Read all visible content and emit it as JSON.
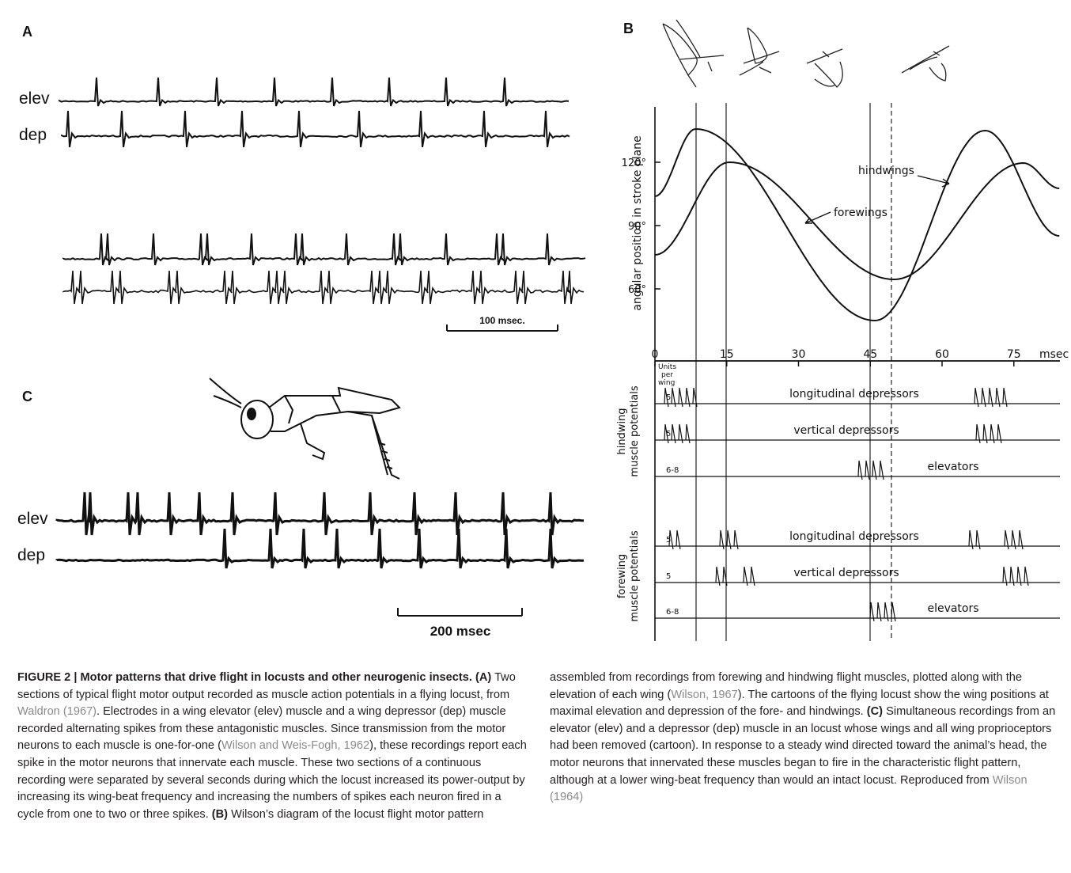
{
  "panel_a": {
    "label": "A",
    "elev": "elev",
    "dep": "dep",
    "scale_bar": "100 msec."
  },
  "panel_b": {
    "label": "B",
    "y_axis_title": "angular position in stroke plane",
    "y_ticks": [
      "60°",
      "90°",
      "120°"
    ],
    "x_ticks": [
      "0",
      "15",
      "30",
      "45",
      "60",
      "75"
    ],
    "x_unit": "msec",
    "curve_labels": [
      "hindwings",
      "forewings"
    ],
    "units_per_wing": [
      "Units",
      "per",
      "wing"
    ],
    "hindwing": {
      "title": [
        "hindwing",
        "muscle potentials"
      ],
      "rows": [
        {
          "units": "5",
          "label": "longitudinal depressors"
        },
        {
          "units": "5",
          "label": "vertical depressors"
        },
        {
          "units": "6-8",
          "label": "elevators"
        }
      ]
    },
    "forewing": {
      "title": [
        "forewing",
        "muscle potentials"
      ],
      "rows": [
        {
          "units": "5",
          "label": "longitudinal depressors"
        },
        {
          "units": "5",
          "label": "vertical depressors"
        },
        {
          "units": "6-8",
          "label": "elevators"
        }
      ]
    }
  },
  "panel_c": {
    "label": "C",
    "elev": "elev",
    "dep": "dep",
    "scale_bar": "200 msec"
  },
  "caption": {
    "segments": [
      "FIGURE 2 | Motor patterns that drive flight in locusts and other neurogenic insects.",
      "(A)",
      "Two sections of typical flight motor output recorded as muscle action potentials in a flying locust, from",
      "Waldron (1967)",
      ". Electrodes in a wing elevator (elev) muscle and a wing depressor (dep) muscle recorded alternating spikes from these antagonistic muscles. Since transmission from the motor neurons to each muscle is one-for-one (",
      "Wilson and Weis-Fogh, 1962",
      "), these recordings report each spike in the motor neurons that innervate each muscle. These two sections of a continuous recording were separated by several seconds during which the locust increased its power-output by increasing its wing-beat frequency and increasing the numbers of spikes each neuron fired in a cycle from one to two or three spikes.",
      "(B)",
      "Wilson’s diagram of the locust flight motor pattern assembled from recordings from forewing and hindwing flight muscles, plotted along with the elevation of each wing (",
      "Wilson, 1967",
      "). The cartoons of the flying locust show the wing positions at maximal elevation and depression of the fore- and hindwings.",
      "(C)",
      "Simultaneous recordings from an elevator (elev) and a depressor (dep) muscle in an locust whose wings and all wing proprioceptors had been removed (cartoon). In response to a steady wind directed toward the animal’s head, the motor neurons that innervated these muscles began to fire in the characteristic flight pattern, although at a lower wing-beat frequency than would an intact locust. Reproduced from",
      "Wilson (1964)"
    ]
  }
}
